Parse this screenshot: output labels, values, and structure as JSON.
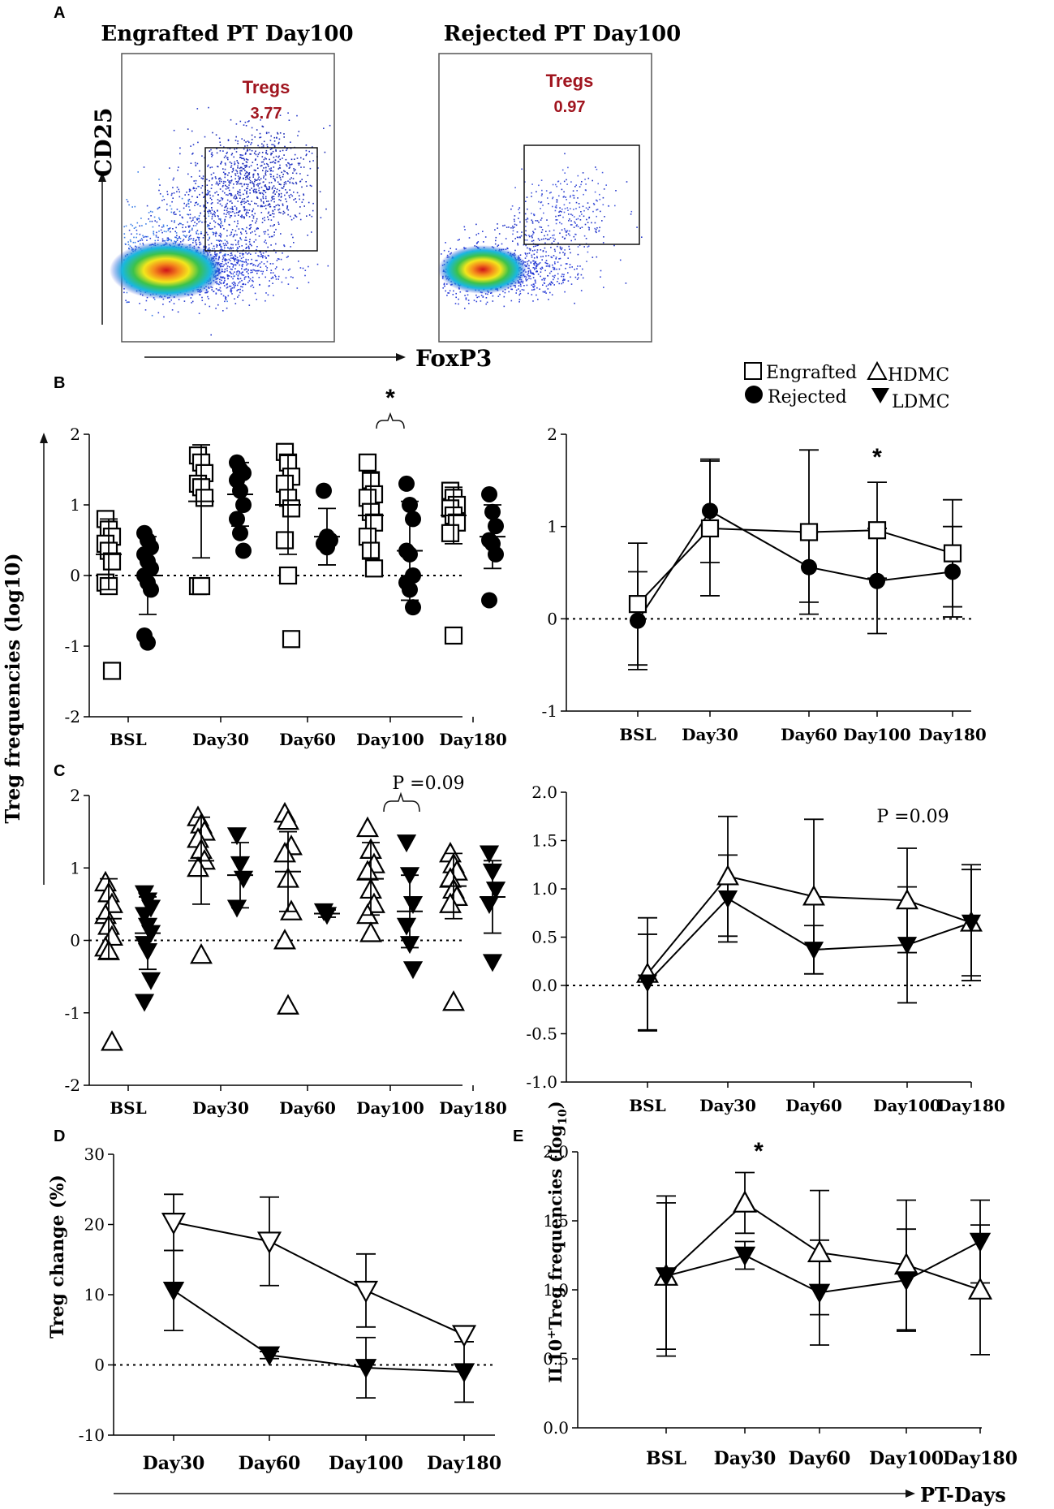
{
  "panel_labels": {
    "a": "A",
    "b": "B",
    "c": "C",
    "d": "D",
    "e": "E"
  },
  "shared": {
    "y_axis_label": "Treg frequencies (log10)",
    "x_axis_bottom_label": "PT-Days",
    "legend_B": {
      "engrafted": "Engrafted",
      "rejected": "Rejected"
    },
    "legend_C": {
      "hdmc": "HDMC",
      "ldmc": "LDMC"
    }
  },
  "panelA": {
    "y_marker": "CD25",
    "x_marker": "FoxP3",
    "plots": [
      {
        "title": "Engrafted PT Day100",
        "gate_label": "Tregs",
        "gate_value": "3.77"
      },
      {
        "title": "Rejected PT Day100",
        "gate_label": "Tregs",
        "gate_value": "0.97"
      }
    ]
  },
  "annotations": {
    "b_scatter_sig": "*",
    "b_line_sig": "*",
    "c_scatter_sig": "P =0.09",
    "c_line_sig": "P =0.09",
    "e_sig": "*"
  },
  "chart_data": [
    {
      "id": "B-left",
      "type": "scatter",
      "categories": [
        "BSL",
        "Day30",
        "Day60",
        "Day100",
        "Day180"
      ],
      "ylim": [
        -2,
        2
      ],
      "yticks": [
        "-2",
        "-1",
        "0",
        "1",
        "2"
      ],
      "series": [
        {
          "name": "Engrafted",
          "marker": "open-square",
          "points": [
            [
              0.8,
              0.65,
              0.55,
              0.45,
              0.35,
              0.2,
              -0.1,
              -0.15,
              -1.35
            ],
            [
              1.7,
              1.6,
              1.45,
              1.3,
              1.25,
              1.1,
              -0.15,
              -0.15
            ],
            [
              1.75,
              1.6,
              1.4,
              1.3,
              1.1,
              0.95,
              0.5,
              0.0,
              -0.9
            ],
            [
              1.6,
              1.35,
              1.15,
              1.1,
              0.9,
              0.75,
              0.55,
              0.35,
              0.1
            ],
            [
              1.2,
              1.1,
              1.0,
              0.95,
              0.85,
              0.75,
              0.6,
              -0.85
            ]
          ],
          "mean": [
            0.3,
            1.05,
            1.0,
            0.85,
            0.85
          ],
          "sd": [
            0.5,
            0.8,
            0.7,
            0.6,
            0.4
          ]
        },
        {
          "name": "Rejected",
          "marker": "filled-circle",
          "points": [
            [
              0.6,
              0.5,
              0.4,
              0.3,
              0.2,
              0.1,
              0.0,
              -0.1,
              -0.2,
              -0.85,
              -0.95
            ],
            [
              1.6,
              1.5,
              1.45,
              1.35,
              1.2,
              1.0,
              0.8,
              0.6,
              0.35
            ],
            [
              1.2,
              0.55,
              0.5,
              0.45,
              0.4
            ],
            [
              1.3,
              1.0,
              0.8,
              0.35,
              0.3,
              0.0,
              -0.1,
              -0.2,
              -0.45
            ],
            [
              1.15,
              0.9,
              0.7,
              0.5,
              0.45,
              0.3,
              -0.35
            ]
          ],
          "mean": [
            0.0,
            1.15,
            0.55,
            0.35,
            0.55
          ],
          "sd": [
            0.55,
            0.45,
            0.4,
            0.7,
            0.45
          ]
        }
      ]
    },
    {
      "id": "B-right",
      "type": "line",
      "categories": [
        "BSL",
        "Day30",
        "Day60",
        "Day100",
        "Day180"
      ],
      "ylim": [
        -1,
        2
      ],
      "yticks": [
        "-1",
        "0",
        "1",
        "2"
      ],
      "series": [
        {
          "name": "Engrafted",
          "marker": "open-square",
          "values": [
            0.16,
            0.98,
            0.94,
            0.96,
            0.71
          ],
          "err": [
            0.66,
            0.73,
            0.89,
            0.52,
            0.58
          ]
        },
        {
          "name": "Rejected",
          "marker": "filled-circle",
          "values": [
            -0.02,
            1.17,
            0.56,
            0.41,
            0.51
          ],
          "err": [
            0.53,
            0.56,
            0.38,
            0.57,
            0.49
          ]
        }
      ]
    },
    {
      "id": "C-left",
      "type": "scatter",
      "categories": [
        "BSL",
        "Day30",
        "Day60",
        "Day100",
        "Day180"
      ],
      "ylim": [
        -2,
        2
      ],
      "yticks": [
        "-2",
        "-1",
        "0",
        "1",
        "2"
      ],
      "series": [
        {
          "name": "HDMC",
          "marker": "open-triangle-up",
          "points": [
            [
              0.8,
              0.65,
              0.5,
              0.35,
              0.2,
              0.05,
              -0.1,
              -0.15,
              -1.4
            ],
            [
              1.7,
              1.6,
              1.5,
              1.4,
              1.25,
              1.1,
              1.0,
              -0.2
            ],
            [
              1.75,
              1.65,
              1.3,
              1.2,
              0.85,
              0.4,
              0.0,
              -0.9
            ],
            [
              1.55,
              1.25,
              1.05,
              0.95,
              0.7,
              0.5,
              0.35,
              0.1
            ],
            [
              1.2,
              1.05,
              0.95,
              0.85,
              0.7,
              0.6,
              0.5,
              -0.85
            ]
          ],
          "mean": [
            0.3,
            1.1,
            0.95,
            0.85,
            0.75
          ],
          "sd": [
            0.55,
            0.6,
            0.55,
            0.5,
            0.45
          ]
        },
        {
          "name": "LDMC",
          "marker": "filled-triangle-down",
          "points": [
            [
              0.65,
              0.55,
              0.45,
              0.35,
              0.2,
              0.1,
              -0.05,
              -0.15,
              -0.55,
              -0.85
            ],
            [
              1.45,
              1.05,
              0.85,
              0.45
            ],
            [
              0.4,
              0.35
            ],
            [
              1.35,
              0.9,
              0.5,
              0.2,
              -0.05,
              -0.4
            ],
            [
              1.2,
              0.95,
              0.7,
              0.5,
              -0.3
            ]
          ],
          "mean": [
            0.1,
            0.9,
            0.37,
            0.4,
            0.6
          ],
          "sd": [
            0.5,
            0.45,
            0.05,
            0.5,
            0.5
          ]
        }
      ]
    },
    {
      "id": "C-right",
      "type": "line",
      "categories": [
        "BSL",
        "Day30",
        "Day60",
        "Day100",
        "Day180"
      ],
      "ylim": [
        -1,
        2
      ],
      "yticks": [
        "-1.0",
        "-0.5",
        "0.0",
        "0.5",
        "1.0",
        "1.5",
        "2.0"
      ],
      "series": [
        {
          "name": "HDMC",
          "marker": "open-triangle-up",
          "values": [
            0.12,
            1.13,
            0.92,
            0.88,
            0.65
          ],
          "err": [
            0.58,
            0.62,
            0.8,
            0.54,
            0.6
          ]
        },
        {
          "name": "LDMC",
          "marker": "filled-triangle-down",
          "values": [
            0.03,
            0.9,
            0.37,
            0.42,
            0.65
          ],
          "err": [
            0.5,
            0.45,
            0.25,
            0.6,
            0.55
          ]
        }
      ]
    },
    {
      "id": "D",
      "type": "line",
      "ylabel": "Treg change (%)",
      "categories": [
        "Day30",
        "Day60",
        "Day100",
        "Day180"
      ],
      "ylim": [
        -10,
        30
      ],
      "yticks": [
        "-10",
        "0",
        "10",
        "20",
        "30"
      ],
      "series": [
        {
          "name": "HDMC",
          "marker": "open-triangle-down",
          "values": [
            20.3,
            17.6,
            10.6,
            4.3
          ],
          "err": [
            4.0,
            6.3,
            5.2,
            0
          ]
        },
        {
          "name": "LDMC",
          "marker": "filled-triangle-down",
          "values": [
            10.6,
            1.4,
            -0.4,
            -1.0
          ],
          "err": [
            5.7,
            0.5,
            4.3,
            4.3
          ]
        }
      ]
    },
    {
      "id": "E",
      "type": "line",
      "ylabel_pre": "IL10",
      "ylabel_sup": "+",
      "ylabel_mid": "Treg frequencies (log",
      "ylabel_sub": "10",
      "ylabel_end": ")",
      "categories": [
        "BSL",
        "Day30",
        "Day60",
        "Day100",
        "Day180"
      ],
      "ylim": [
        0,
        2
      ],
      "yticks": [
        "0.0",
        "0.5",
        "1.0",
        "1.5",
        "2.0"
      ],
      "series": [
        {
          "name": "HDMC",
          "marker": "open-triangle-up",
          "values": [
            1.1,
            1.63,
            1.27,
            1.18,
            1.0
          ],
          "err": [
            0.58,
            0.22,
            0.45,
            0.47,
            0.47
          ]
        },
        {
          "name": "LDMC",
          "marker": "filled-triangle-down",
          "values": [
            1.1,
            1.25,
            0.98,
            1.07,
            1.35
          ],
          "err": [
            0.53,
            0.1,
            0.38,
            0.37,
            0.3
          ]
        }
      ]
    }
  ]
}
